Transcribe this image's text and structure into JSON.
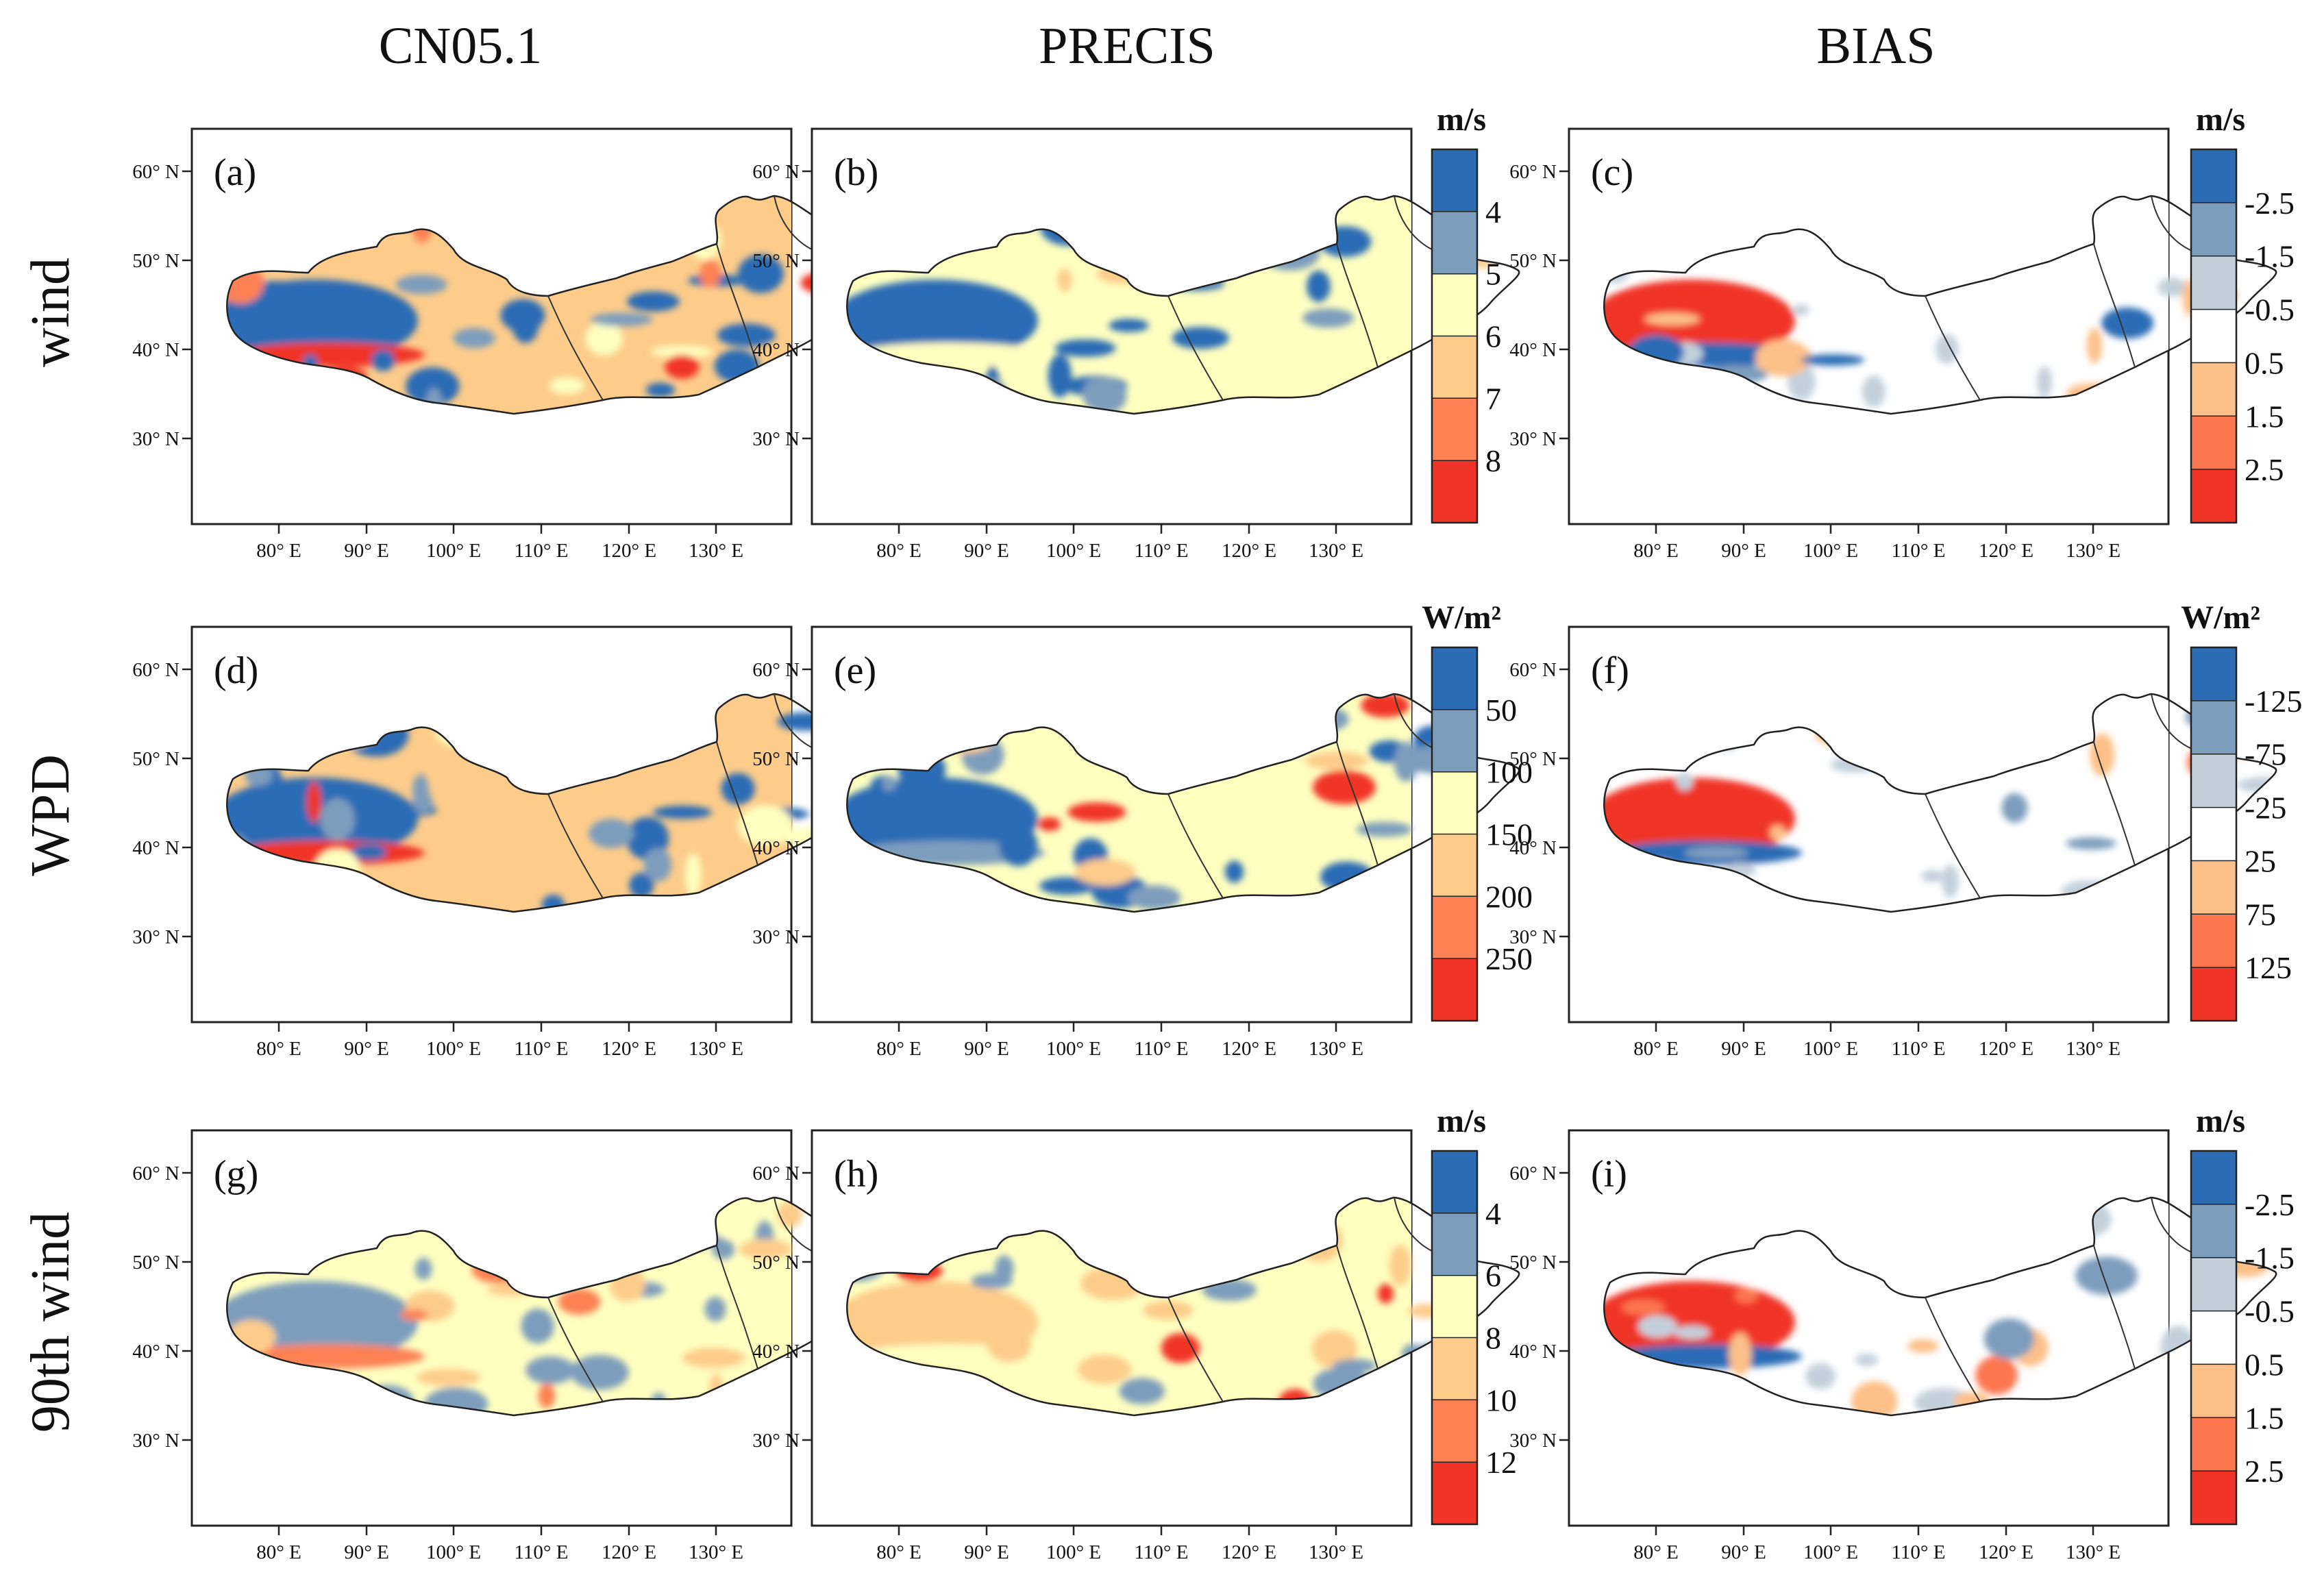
{
  "figure": {
    "column_titles": [
      "CN05.1",
      "PRECIS",
      "BIAS"
    ],
    "row_titles": [
      "wind",
      "WPD",
      "90th wind"
    ],
    "lat_ticks": [
      "60° N",
      "50° N",
      "40° N",
      "30° N"
    ],
    "lon_ticks": [
      "80° E",
      "90° E",
      "100° E",
      "110° E",
      "120° E",
      "130° E"
    ]
  },
  "panels": [
    {
      "label": "(a)",
      "field": "wind",
      "source": "CN05.1"
    },
    {
      "label": "(b)",
      "field": "wind",
      "source": "PRECIS"
    },
    {
      "label": "(c)",
      "field": "wind",
      "source": "BIAS"
    },
    {
      "label": "(d)",
      "field": "WPD",
      "source": "CN05.1"
    },
    {
      "label": "(e)",
      "field": "WPD",
      "source": "PRECIS"
    },
    {
      "label": "(f)",
      "field": "WPD",
      "source": "BIAS"
    },
    {
      "label": "(g)",
      "field": "90th wind",
      "source": "CN05.1"
    },
    {
      "label": "(h)",
      "field": "90th wind",
      "source": "PRECIS"
    },
    {
      "label": "(i)",
      "field": "90th wind",
      "source": "BIAS"
    }
  ],
  "colorbars": [
    {
      "row": "wind",
      "type": "value",
      "unit": "m/s",
      "labels": [
        "4",
        "5",
        "6",
        "7",
        "8"
      ]
    },
    {
      "row": "wind",
      "type": "bias",
      "unit": "m/s",
      "labels": [
        "-2.5",
        "-1.5",
        "-0.5",
        "0.5",
        "1.5",
        "2.5"
      ]
    },
    {
      "row": "WPD",
      "type": "value",
      "unit": "W/m²",
      "labels": [
        "50",
        "100",
        "150",
        "200",
        "250"
      ]
    },
    {
      "row": "WPD",
      "type": "bias",
      "unit": "W/m²",
      "labels": [
        "-125",
        "-75",
        "-25",
        "25",
        "75",
        "125"
      ]
    },
    {
      "row": "90th wind",
      "type": "value",
      "unit": "m/s",
      "labels": [
        "4",
        "6",
        "8",
        "10",
        "12"
      ]
    },
    {
      "row": "90th wind",
      "type": "bias",
      "unit": "m/s",
      "labels": [
        "-2.5",
        "-1.5",
        "-0.5",
        "0.5",
        "1.5",
        "2.5"
      ]
    }
  ],
  "colors": {
    "value_scale": [
      "#2b6cb5",
      "#7d9dbd",
      "#ffffc0",
      "#fdcc8a",
      "#fc8155",
      "#f03427"
    ],
    "bias_scale": [
      "#2b6cb5",
      "#7d9dbd",
      "#c3d0dc",
      "#ffffff",
      "#fdc088",
      "#fc7650",
      "#f03427"
    ]
  }
}
